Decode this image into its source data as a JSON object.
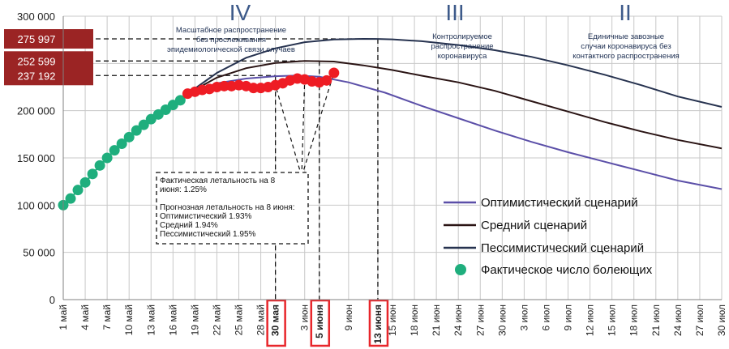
{
  "colors": {
    "optimistic": "#5b4fa8",
    "medium": "#2a1414",
    "pessimistic": "#26324f",
    "actual_green": "#1fae7d",
    "actual_red": "#ee1c24",
    "badge": "#9b2424",
    "phase": "#3d5a8a",
    "date_box": "#e8262b",
    "grid": "#c8c8c8"
  },
  "chart_data": {
    "type": "line",
    "x_tick_labels": [
      "1 май",
      "4 май",
      "7 май",
      "10 май",
      "13 май",
      "16 май",
      "19 май",
      "22 май",
      "25 май",
      "28 май",
      "30 мая",
      "3 июн",
      "5 июня",
      "9 июн",
      "13 июня",
      "15 июн",
      "18 июн",
      "21 июн",
      "24 июн",
      "27 июн",
      "30 июн",
      "3 июл",
      "6 июл",
      "9 июл",
      "12 июл",
      "15 июл",
      "18 июл",
      "21 июл",
      "24 июл",
      "27 июл",
      "30 июл"
    ],
    "x_tick_days": [
      1,
      4,
      7,
      10,
      13,
      16,
      19,
      22,
      25,
      28,
      30,
      34,
      36,
      40,
      44,
      46,
      49,
      52,
      55,
      58,
      61,
      64,
      67,
      70,
      73,
      76,
      79,
      82,
      85,
      88,
      91
    ],
    "highlighted_dates": [
      "30 мая",
      "5 июня",
      "13 июня"
    ],
    "y_ticks": [
      "0",
      "50 000",
      "100 000",
      "150 000",
      "200 000",
      "250 000",
      "300 000"
    ],
    "ylim": [
      0,
      300000
    ],
    "xlim": [
      1,
      91
    ],
    "grid": true,
    "legend_position": "right",
    "legend": [
      {
        "label": "Оптимистический сценарий",
        "key": "optimistic"
      },
      {
        "label": "Средний сценарий",
        "key": "medium"
      },
      {
        "label": "Пессимистический сценарий",
        "key": "pessimistic"
      },
      {
        "label": "Фактическое число болеющих",
        "key": "actual"
      }
    ],
    "series": [
      {
        "key": "optimistic",
        "x": [
          18,
          22,
          26,
          30,
          33,
          36,
          40,
          45,
          50,
          55,
          60,
          65,
          70,
          75,
          80,
          85,
          91
        ],
        "y": [
          218000,
          229000,
          234000,
          236500,
          237192,
          236000,
          230000,
          219000,
          205000,
          192000,
          179000,
          167000,
          156000,
          146000,
          136000,
          126000,
          117000
        ]
      },
      {
        "key": "medium",
        "x": [
          18,
          22,
          26,
          30,
          34,
          38,
          42,
          46,
          50,
          55,
          60,
          65,
          70,
          75,
          80,
          85,
          91
        ],
        "y": [
          218000,
          235000,
          245000,
          250500,
          252599,
          252000,
          248000,
          243000,
          237000,
          230000,
          221000,
          210000,
          199000,
          188000,
          178000,
          169000,
          160000
        ]
      },
      {
        "key": "pessimistic",
        "x": [
          18,
          22,
          26,
          30,
          34,
          38,
          42,
          44,
          46,
          50,
          55,
          60,
          65,
          70,
          75,
          80,
          85,
          91
        ],
        "y": [
          218000,
          240000,
          256000,
          266000,
          272500,
          275300,
          275997,
          275900,
          275500,
          273500,
          269500,
          264000,
          257000,
          248000,
          238000,
          227000,
          215000,
          204000
        ]
      },
      {
        "key": "actual",
        "color_key": "actual_green",
        "x": [
          1,
          2,
          3,
          4,
          5,
          6,
          7,
          8,
          9,
          10,
          11,
          12,
          13,
          14,
          15,
          16,
          17
        ],
        "y": [
          100000,
          107000,
          116000,
          124000,
          133000,
          142000,
          150000,
          158000,
          165000,
          172000,
          179000,
          185000,
          191000,
          196000,
          201000,
          206000,
          211000
        ]
      },
      {
        "key": "actual",
        "color_key": "actual_red",
        "x": [
          18,
          19,
          20,
          21,
          22,
          23,
          24,
          25,
          26,
          27,
          28,
          29,
          30,
          31,
          32,
          33,
          34,
          35,
          36,
          37,
          38
        ],
        "y": [
          218000,
          220000,
          222000,
          223000,
          225000,
          226000,
          226000,
          227000,
          226000,
          224000,
          224000,
          225000,
          227000,
          229000,
          232000,
          234000,
          233000,
          231000,
          230000,
          232000,
          240000
        ]
      }
    ],
    "badges": [
      {
        "label": "275 997",
        "value": 275997,
        "line_to_day": 44
      },
      {
        "label": "252 599",
        "value": 252599,
        "line_to_day": 36
      },
      {
        "label": "237 192",
        "value": 237192,
        "line_to_day": 30
      }
    ],
    "phases": [
      {
        "numeral": "IV",
        "day": 22,
        "text": "Масштабное распространение без прослеживания эпидемиологической связи случаев"
      },
      {
        "numeral": "III",
        "day": 55,
        "text": "Контролируемое распространение коронавируса"
      },
      {
        "numeral": "II",
        "day": 77,
        "text": "Единичные завозные случаи коронавируса без контактного распространения"
      }
    ],
    "annotation": {
      "fact_line1": "Фактическая летальность на 8",
      "fact_line2": "июня: 1.25%",
      "forecast_line1": "Прогнозная летальность на 8 июня:",
      "forecast_line2": "Оптимистический 1.93%",
      "forecast_line3": "Средний 1.94%",
      "forecast_line4": "Пессимистический 1.95%"
    }
  }
}
